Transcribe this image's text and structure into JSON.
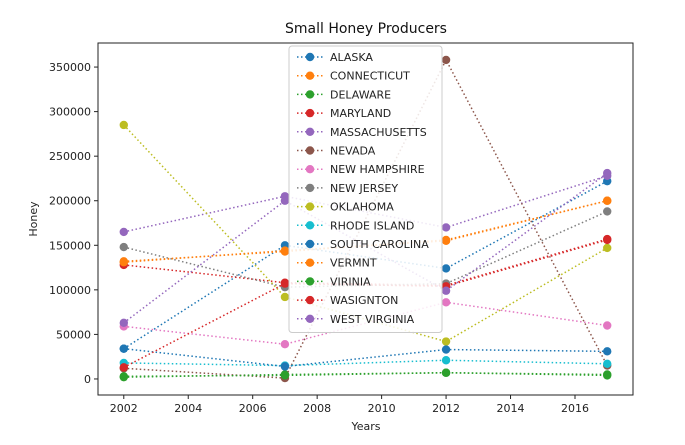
{
  "chart_data": {
    "type": "line",
    "title": "Small Honey Producers",
    "xlabel": "Years",
    "ylabel": "Honey",
    "xlim": [
      2001.2,
      2017.8
    ],
    "ylim": [
      -18000,
      377000
    ],
    "xticks": [
      2002,
      2004,
      2006,
      2008,
      2010,
      2012,
      2014,
      2016
    ],
    "yticks": [
      0,
      50000,
      100000,
      150000,
      200000,
      250000,
      300000,
      350000
    ],
    "x": [
      2002,
      2007,
      2012,
      2017
    ],
    "line_style": "dotted",
    "marker": "circle",
    "grid": false,
    "legend_position": "upper-center",
    "series": [
      {
        "name": "ALASKA",
        "color": "#1f77b4",
        "values": [
          34000,
          150000,
          124000,
          222000
        ]
      },
      {
        "name": "CONNECTICUT",
        "color": "#ff7f0e",
        "values": [
          132000,
          143000,
          156000,
          200000
        ]
      },
      {
        "name": "DELAWARE",
        "color": "#2ca02c",
        "values": [
          2000,
          5000,
          7000,
          5000
        ]
      },
      {
        "name": "MARYLAND",
        "color": "#d62728",
        "values": [
          128000,
          108000,
          105000,
          157000
        ]
      },
      {
        "name": "MASSACHUSETTS",
        "color": "#9467bd",
        "values": [
          165000,
          205000,
          170000,
          228000
        ]
      },
      {
        "name": "NEVADA",
        "color": "#8c564b",
        "values": [
          12000,
          1000,
          358000,
          15000
        ]
      },
      {
        "name": "NEW HAMPSHIRE",
        "color": "#e377c2",
        "values": [
          59000,
          39000,
          86000,
          60000
        ]
      },
      {
        "name": "NEW JERSEY",
        "color": "#7f7f7f",
        "values": [
          148000,
          103000,
          107000,
          188000
        ]
      },
      {
        "name": "OKLAHOMA",
        "color": "#bcbd22",
        "values": [
          285000,
          92000,
          42000,
          147000
        ]
      },
      {
        "name": "RHODE ISLAND",
        "color": "#17becf",
        "values": [
          18000,
          15000,
          21000,
          17000
        ]
      },
      {
        "name": "SOUTH CAROLINA",
        "color": "#1f77b4",
        "values": [
          34000,
          14000,
          33000,
          31000
        ]
      },
      {
        "name": "VERMNT",
        "color": "#ff7f0e",
        "values": [
          131000,
          144000,
          155000,
          200000
        ]
      },
      {
        "name": "VIRINIA",
        "color": "#2ca02c",
        "values": [
          3000,
          4000,
          7000,
          4000
        ]
      },
      {
        "name": "WASIGNTON",
        "color": "#d62728",
        "values": [
          13000,
          107000,
          104000,
          156000
        ]
      },
      {
        "name": "WEST VIRGINIA",
        "color": "#9467bd",
        "values": [
          63000,
          200000,
          99000,
          231000
        ]
      }
    ]
  }
}
